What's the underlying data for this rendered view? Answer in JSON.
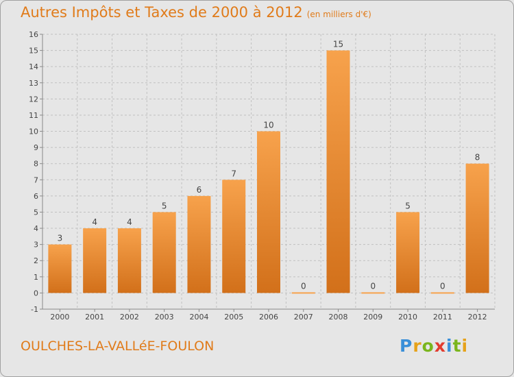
{
  "header": {
    "title": "Autres Impôts et Taxes de 2000 à 2012",
    "subtitle": "(en milliers d'€)"
  },
  "footer": {
    "commune": "OULCHES-LA-VALLéE-FOULON",
    "logo_letters": [
      {
        "char": "P",
        "color": "#3a8fd8"
      },
      {
        "char": "r",
        "color": "#e6a21a"
      },
      {
        "char": "o",
        "color": "#7ab51d"
      },
      {
        "char": "x",
        "color": "#e23b2e"
      },
      {
        "char": "i",
        "color": "#3a8fd8"
      },
      {
        "char": "t",
        "color": "#7ab51d"
      },
      {
        "char": "i",
        "color": "#e6a21a"
      }
    ]
  },
  "chart_data": {
    "type": "bar",
    "categories": [
      "2000",
      "2001",
      "2002",
      "2003",
      "2004",
      "2005",
      "2006",
      "2007",
      "2008",
      "2009",
      "2010",
      "2011",
      "2012"
    ],
    "values": [
      3,
      4,
      4,
      5,
      6,
      7,
      10,
      0,
      15,
      0,
      5,
      0,
      8
    ],
    "data_labels": [
      "3",
      "4",
      "4",
      "5",
      "6",
      "7",
      "10",
      "0",
      "15",
      "0",
      "5",
      "0",
      "8"
    ],
    "ylim": [
      -1,
      16
    ],
    "yticks": [
      "-1",
      "0",
      "1",
      "2",
      "3",
      "4",
      "5",
      "6",
      "7",
      "8",
      "9",
      "10",
      "11",
      "12",
      "13",
      "14",
      "15",
      "16"
    ],
    "grid": true,
    "colors": {
      "bar_light": "#f7a24c",
      "bar_dark": "#d2701a",
      "grid": "#c0c0c0",
      "text": "#444444"
    }
  }
}
